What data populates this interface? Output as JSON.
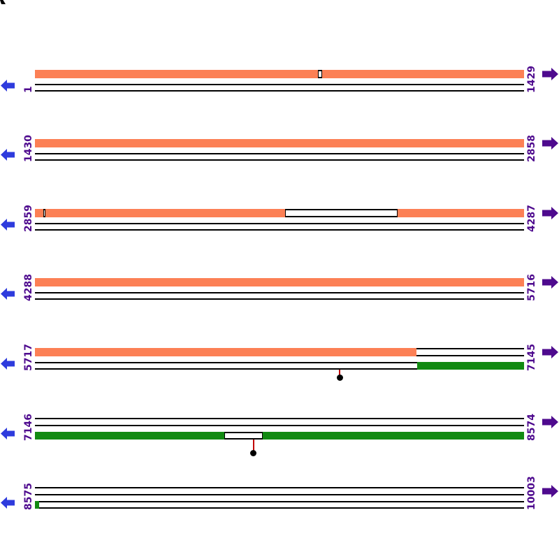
{
  "colors": {
    "forward_feature": "#FC8055",
    "reverse_feature": "#128A12",
    "left_arrow": "#2E3BDD",
    "right_arrow": "#4E0A8E",
    "coordinate_label": "#4E0A8E",
    "strand_line": "#000000",
    "marker_stem": "#C00000",
    "marker_dot": "#000000"
  },
  "rows": [
    {
      "start_label": "1",
      "end_label": "1429",
      "forward": {
        "bars": [
          [
            0,
            1
          ]
        ],
        "gaps": [
          [
            0.579,
            0.587
          ]
        ]
      },
      "reverse": {
        "bars": [],
        "gaps": []
      },
      "markers": []
    },
    {
      "start_label": "1430",
      "end_label": "2858",
      "forward": {
        "bars": [
          [
            0,
            1
          ]
        ],
        "gaps": []
      },
      "reverse": {
        "bars": [],
        "gaps": []
      },
      "markers": []
    },
    {
      "start_label": "2859",
      "end_label": "4287",
      "forward": {
        "bars": [
          [
            0,
            0.511
          ],
          [
            0.741,
            1
          ]
        ],
        "gaps": [
          [
            0.017,
            0.021
          ],
          [
            0.511,
            0.741
          ]
        ]
      },
      "reverse": {
        "bars": [],
        "gaps": []
      },
      "markers": []
    },
    {
      "start_label": "4288",
      "end_label": "5716",
      "forward": {
        "bars": [
          [
            0,
            1
          ]
        ],
        "gaps": []
      },
      "reverse": {
        "bars": [],
        "gaps": []
      },
      "markers": []
    },
    {
      "start_label": "5717",
      "end_label": "7145",
      "forward": {
        "bars": [
          [
            0,
            0.78
          ]
        ],
        "gaps": []
      },
      "reverse": {
        "bars": [
          [
            0.781,
            1
          ]
        ],
        "gaps": []
      },
      "markers": [
        {
          "pos": 0.623,
          "drop": 11
        }
      ]
    },
    {
      "start_label": "7146",
      "end_label": "8574",
      "forward": {
        "bars": [],
        "gaps": []
      },
      "reverse": {
        "bars": [
          [
            0,
            1
          ]
        ],
        "gaps": [
          [
            0.387,
            0.466
          ]
        ]
      },
      "markers": [
        {
          "pos": 0.447,
          "drop": 19
        }
      ]
    },
    {
      "start_label": "8575",
      "end_label": "10003",
      "forward": {
        "bars": [],
        "gaps": []
      },
      "reverse": {
        "bars": [
          [
            0,
            0.009
          ]
        ],
        "gaps": []
      },
      "markers": []
    }
  ]
}
